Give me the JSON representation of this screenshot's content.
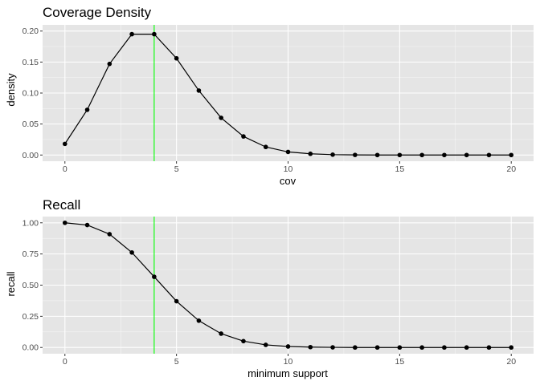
{
  "colors": {
    "panel_background": "#E5E5E5",
    "grid_major": "#FFFFFF",
    "line": "#000000",
    "point": "#000000",
    "vline": "#00FF00",
    "tick": "#333333",
    "tick_text": "#4D4D4D"
  },
  "chart_data": [
    {
      "type": "line",
      "title": "Coverage Density",
      "xlabel": "cov",
      "ylabel": "density",
      "xlim": [
        0,
        20
      ],
      "ylim": [
        0,
        0.2
      ],
      "x_ticks": [
        0,
        5,
        10,
        15,
        20
      ],
      "x_tick_labels": [
        "0",
        "5",
        "10",
        "15",
        "20"
      ],
      "y_ticks": [
        0,
        0.05,
        0.1,
        0.15,
        0.2
      ],
      "y_tick_labels": [
        "0.00",
        "0.05",
        "0.10",
        "0.15",
        "0.20"
      ],
      "grid": true,
      "x": [
        0,
        1,
        2,
        3,
        4,
        5,
        6,
        7,
        8,
        9,
        10,
        11,
        12,
        13,
        14,
        15,
        16,
        17,
        18,
        19,
        20
      ],
      "y": [
        0.018,
        0.073,
        0.147,
        0.195,
        0.195,
        0.156,
        0.104,
        0.06,
        0.03,
        0.013,
        0.005,
        0.002,
        0.0006,
        0.0002,
        0,
        0,
        0,
        0,
        0,
        0,
        0
      ],
      "vline": 4
    },
    {
      "type": "line",
      "title": "Recall",
      "xlabel": "minimum support",
      "ylabel": "recall",
      "xlim": [
        0,
        20
      ],
      "ylim": [
        0,
        1
      ],
      "x_ticks": [
        0,
        5,
        10,
        15,
        20
      ],
      "x_tick_labels": [
        "0",
        "5",
        "10",
        "15",
        "20"
      ],
      "y_ticks": [
        0,
        0.25,
        0.5,
        0.75,
        1
      ],
      "y_tick_labels": [
        "0.00",
        "0.25",
        "0.50",
        "0.75",
        "1.00"
      ],
      "grid": true,
      "x": [
        0,
        1,
        2,
        3,
        4,
        5,
        6,
        7,
        8,
        9,
        10,
        11,
        12,
        13,
        14,
        15,
        16,
        17,
        18,
        19,
        20
      ],
      "y": [
        1.0,
        0.982,
        0.909,
        0.762,
        0.567,
        0.371,
        0.215,
        0.111,
        0.051,
        0.021,
        0.008,
        0.003,
        0.001,
        0,
        0,
        0,
        0,
        0,
        0,
        0,
        0
      ],
      "vline": 4
    }
  ]
}
